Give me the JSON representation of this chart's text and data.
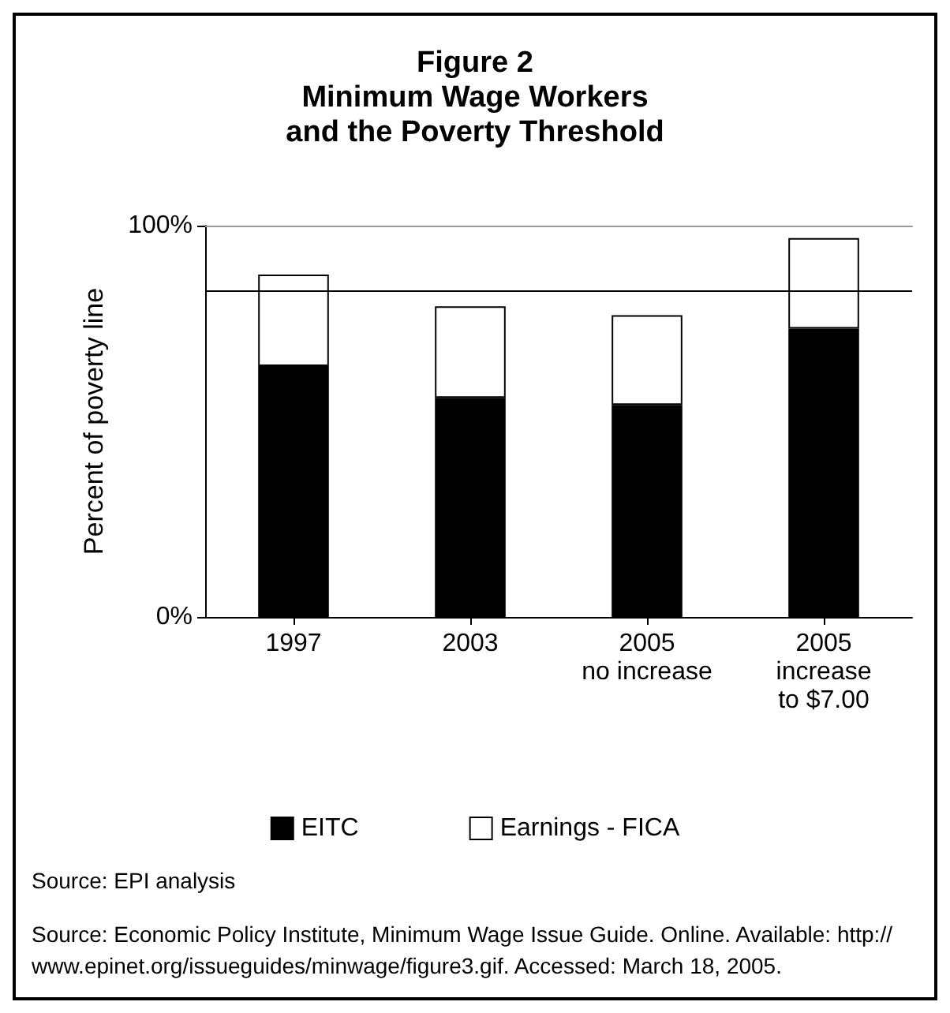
{
  "chart_data": {
    "type": "bar",
    "title": "Figure 2\nMinimum Wage Workers\nand the Poverty Threshold",
    "ylabel": "Percent of poverty line",
    "categories": [
      "1997",
      "2003",
      "2005\nno increase",
      "2005\nincrease\nto $7.00"
    ],
    "stacked": true,
    "series": [
      {
        "name": "EITC",
        "color": "#000000",
        "values": [
          64.1,
          56.0,
          54.2,
          73.7
        ]
      },
      {
        "name": "Earnings - FICA",
        "color": "#ffffff",
        "values": [
          23.4,
          23.4,
          22.9,
          23.1
        ]
      }
    ],
    "ylim": [
      0,
      100
    ],
    "yticks": [
      {
        "value": 0,
        "label": "0%"
      },
      {
        "value": 100,
        "label": "100%"
      }
    ],
    "ref_lines": [
      {
        "axis": "y",
        "value": 83.5,
        "color": "#000000"
      }
    ],
    "legend": "bottom",
    "annotations": [
      "Source: EPI analysis",
      "Source: Economic Policy Institute, Minimum Wage Issue Guide. Online. Available: http://www.epinet.org/issueguides/minwage/figure3.gif. Accessed: March 18, 2005."
    ]
  }
}
